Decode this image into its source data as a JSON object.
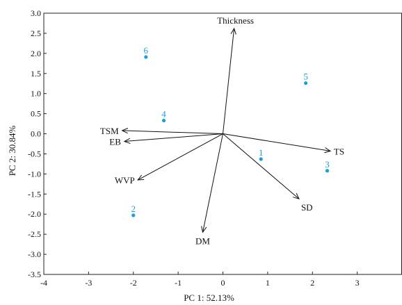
{
  "chart_data": {
    "type": "scatter",
    "subtype": "pca-biplot",
    "title": "",
    "xlabel": "PC 1: 52.13%",
    "ylabel": "PC 2: 30.84%",
    "xlim": [
      -4,
      4
    ],
    "ylim": [
      -3.5,
      3.0
    ],
    "xticks": [
      "-4",
      "-3",
      "-2",
      "-1",
      "0",
      "1",
      "2",
      "3"
    ],
    "yticks": [
      "3.0",
      "2.5",
      "2.0",
      "1.5",
      "1.0",
      "0.5",
      "0.0",
      "-0.5",
      "-1.0",
      "-1.5",
      "-2.0",
      "-2.5",
      "-3.0",
      "-3.5"
    ],
    "point_color": "#1a9fd8",
    "points": [
      {
        "label": "1",
        "x": 0.85,
        "y": -0.63
      },
      {
        "label": "2",
        "x": -2.0,
        "y": -2.03
      },
      {
        "label": "3",
        "x": 2.33,
        "y": -0.92
      },
      {
        "label": "4",
        "x": -1.32,
        "y": 0.33
      },
      {
        "label": "5",
        "x": 1.85,
        "y": 1.26
      },
      {
        "label": "6",
        "x": -1.72,
        "y": 1.91
      }
    ],
    "vectors": [
      {
        "label": "Thickness",
        "x": 0.25,
        "y": 2.62
      },
      {
        "label": "TS",
        "x": 2.4,
        "y": -0.43
      },
      {
        "label": "SD",
        "x": 1.7,
        "y": -1.62
      },
      {
        "label": "DM",
        "x": -0.45,
        "y": -2.45
      },
      {
        "label": "WVP",
        "x": -1.9,
        "y": -1.15
      },
      {
        "label": "EB",
        "x": -2.2,
        "y": -0.19
      },
      {
        "label": "TSM",
        "x": -2.25,
        "y": 0.08
      }
    ],
    "grid": false,
    "legend": "none"
  }
}
